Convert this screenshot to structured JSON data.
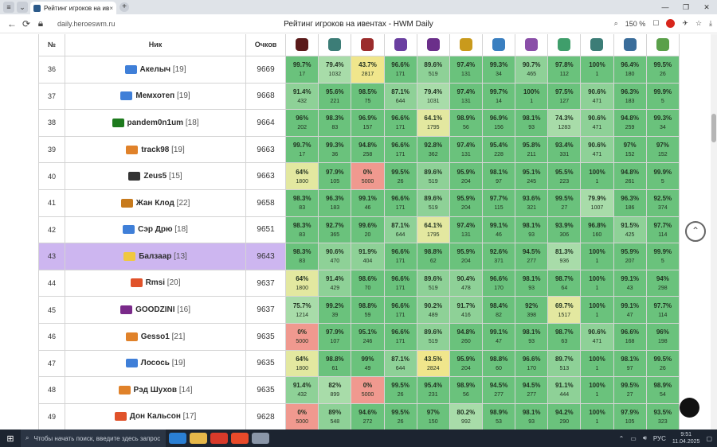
{
  "browser": {
    "tab_title": "Рейтинг игроков на ив",
    "url": "daily.heroeswm.ru",
    "page_title": "Рейтинг игроков на ивентах - HWM Daily",
    "zoom": "150 %",
    "new_tab": "+",
    "close_tab": "×"
  },
  "table": {
    "headers": {
      "num": "№",
      "nick": "Ник",
      "score": "Очков"
    },
    "icon_colors": [
      "#5a1a1a",
      "#3c7d77",
      "#9b2c2c",
      "#6a3fa0",
      "#6b2f8a",
      "#c99a1c",
      "#3a7fc0",
      "#8a4fa8",
      "#3f9e6b",
      "#3c7d77",
      "#3a6d9a",
      "#5aa04a"
    ],
    "icons": [
      "knight-helm-icon",
      "spiked-shield-icon",
      "demon-icon",
      "cloak-icon",
      "purple-hat-icon",
      "coin-icon",
      "axe-icon",
      "ring-icon",
      "sword-icon",
      "beast-icon",
      "bow-icon",
      "dragon-icon"
    ],
    "rows": [
      {
        "num": "36",
        "nick": "Акелыч",
        "lvl": "[19]",
        "flag": "#3f7fd8",
        "score": "9669",
        "cells": [
          [
            "99.7%",
            "17",
            "g3"
          ],
          [
            "79.4%",
            "1032",
            "g1"
          ],
          [
            "43.7%",
            "2817",
            "y2"
          ],
          [
            "96.6%",
            "171",
            "g3"
          ],
          [
            "89.6%",
            "519",
            "g2"
          ],
          [
            "97.4%",
            "131",
            "g3"
          ],
          [
            "99.3%",
            "34",
            "g3"
          ],
          [
            "90.7%",
            "465",
            "g2"
          ],
          [
            "97.8%",
            "112",
            "g3"
          ],
          [
            "100%",
            "1",
            "g3"
          ],
          [
            "96.4%",
            "180",
            "g3"
          ],
          [
            "99.5%",
            "26",
            "g3"
          ]
        ]
      },
      {
        "num": "37",
        "nick": "Мемхотеп",
        "lvl": "[19]",
        "flag": "#3f7fd8",
        "score": "9668",
        "cells": [
          [
            "91.4%",
            "432",
            "g2"
          ],
          [
            "95.6%",
            "221",
            "g3"
          ],
          [
            "98.5%",
            "75",
            "g3"
          ],
          [
            "87.1%",
            "644",
            "g2"
          ],
          [
            "79.4%",
            "1031",
            "g1"
          ],
          [
            "97.4%",
            "131",
            "g3"
          ],
          [
            "99.7%",
            "14",
            "g3"
          ],
          [
            "100%",
            "1",
            "g3"
          ],
          [
            "97.5%",
            "127",
            "g3"
          ],
          [
            "90.6%",
            "471",
            "g2"
          ],
          [
            "96.3%",
            "183",
            "g3"
          ],
          [
            "99.9%",
            "5",
            "g3"
          ]
        ]
      },
      {
        "num": "38",
        "nick": "pandem0n1um",
        "lvl": "[18]",
        "flag": "#1d7a1d",
        "score": "9664",
        "cells": [
          [
            "96%",
            "202",
            "g3"
          ],
          [
            "98.3%",
            "83",
            "g3"
          ],
          [
            "96.9%",
            "157",
            "g3"
          ],
          [
            "96.6%",
            "171",
            "g3"
          ],
          [
            "64.1%",
            "1795",
            "y1"
          ],
          [
            "98.9%",
            "56",
            "g3"
          ],
          [
            "96.9%",
            "156",
            "g3"
          ],
          [
            "98.1%",
            "93",
            "g3"
          ],
          [
            "74.3%",
            "1283",
            "g1"
          ],
          [
            "90.6%",
            "471",
            "g2"
          ],
          [
            "94.8%",
            "259",
            "g3"
          ],
          [
            "99.3%",
            "34",
            "g3"
          ]
        ]
      },
      {
        "num": "39",
        "nick": "track98",
        "lvl": "[19]",
        "flag": "#e0822a",
        "score": "9663",
        "cells": [
          [
            "99.7%",
            "17",
            "g3"
          ],
          [
            "99.3%",
            "36",
            "g3"
          ],
          [
            "94.8%",
            "258",
            "g3"
          ],
          [
            "96.6%",
            "171",
            "g3"
          ],
          [
            "92.8%",
            "362",
            "g3"
          ],
          [
            "97.4%",
            "131",
            "g3"
          ],
          [
            "95.4%",
            "228",
            "g3"
          ],
          [
            "95.8%",
            "211",
            "g3"
          ],
          [
            "93.4%",
            "331",
            "g3"
          ],
          [
            "90.6%",
            "471",
            "g2"
          ],
          [
            "97%",
            "152",
            "g3"
          ],
          [
            "97%",
            "152",
            "g3"
          ]
        ]
      },
      {
        "num": "40",
        "nick": "Zeus5",
        "lvl": "[15]",
        "flag": "#333333",
        "score": "9663",
        "cells": [
          [
            "64%",
            "1800",
            "y1"
          ],
          [
            "97.9%",
            "105",
            "g3"
          ],
          [
            "0%",
            "5000",
            "r1"
          ],
          [
            "99.5%",
            "26",
            "g3"
          ],
          [
            "89.6%",
            "519",
            "g2"
          ],
          [
            "95.9%",
            "204",
            "g3"
          ],
          [
            "98.1%",
            "97",
            "g3"
          ],
          [
            "95.1%",
            "245",
            "g3"
          ],
          [
            "95.5%",
            "223",
            "g3"
          ],
          [
            "100%",
            "1",
            "g3"
          ],
          [
            "94.8%",
            "261",
            "g3"
          ],
          [
            "99.9%",
            "5",
            "g3"
          ]
        ]
      },
      {
        "num": "41",
        "nick": "Жан Клод",
        "lvl": "[22]",
        "flag": "#c77a1c",
        "score": "9658",
        "cells": [
          [
            "98.3%",
            "83",
            "g3"
          ],
          [
            "96.3%",
            "183",
            "g3"
          ],
          [
            "99.1%",
            "46",
            "g3"
          ],
          [
            "96.6%",
            "171",
            "g3"
          ],
          [
            "89.6%",
            "519",
            "g2"
          ],
          [
            "95.9%",
            "204",
            "g3"
          ],
          [
            "97.7%",
            "115",
            "g3"
          ],
          [
            "93.6%",
            "321",
            "g3"
          ],
          [
            "99.5%",
            "27",
            "g3"
          ],
          [
            "79.9%",
            "1007",
            "g1"
          ],
          [
            "96.3%",
            "186",
            "g3"
          ],
          [
            "92.5%",
            "374",
            "g3"
          ]
        ]
      },
      {
        "num": "42",
        "nick": "Сэр Дрю",
        "lvl": "[18]",
        "flag": "#3f7fd8",
        "score": "9651",
        "cells": [
          [
            "98.3%",
            "83",
            "g3"
          ],
          [
            "92.7%",
            "365",
            "g3"
          ],
          [
            "99.6%",
            "20",
            "g3"
          ],
          [
            "87.1%",
            "644",
            "g2"
          ],
          [
            "64.1%",
            "1795",
            "y1"
          ],
          [
            "97.4%",
            "131",
            "g3"
          ],
          [
            "99.1%",
            "46",
            "g3"
          ],
          [
            "98.1%",
            "93",
            "g3"
          ],
          [
            "93.9%",
            "306",
            "g3"
          ],
          [
            "96.8%",
            "160",
            "g3"
          ],
          [
            "91.5%",
            "425",
            "g2"
          ],
          [
            "97.7%",
            "114",
            "g3"
          ]
        ]
      },
      {
        "num": "43",
        "nick": "Балзаар",
        "lvl": "[13]",
        "flag": "#f0c840",
        "score": "9643",
        "hl": true,
        "cells": [
          [
            "98.3%",
            "83",
            "g3"
          ],
          [
            "90.6%",
            "470",
            "g2"
          ],
          [
            "91.9%",
            "404",
            "g2"
          ],
          [
            "96.6%",
            "171",
            "g3"
          ],
          [
            "98.8%",
            "62",
            "g3"
          ],
          [
            "95.9%",
            "204",
            "g3"
          ],
          [
            "92.6%",
            "371",
            "g3"
          ],
          [
            "94.5%",
            "277",
            "g3"
          ],
          [
            "81.3%",
            "936",
            "g1"
          ],
          [
            "100%",
            "1",
            "g3"
          ],
          [
            "95.9%",
            "207",
            "g3"
          ],
          [
            "99.9%",
            "5",
            "g3"
          ]
        ]
      },
      {
        "num": "44",
        "nick": "Rmsi",
        "lvl": "[20]",
        "flag": "#e0522a",
        "score": "9637",
        "cells": [
          [
            "64%",
            "1800",
            "y1"
          ],
          [
            "91.4%",
            "429",
            "g2"
          ],
          [
            "98.6%",
            "70",
            "g3"
          ],
          [
            "96.6%",
            "171",
            "g3"
          ],
          [
            "89.6%",
            "519",
            "g2"
          ],
          [
            "90.4%",
            "478",
            "g2"
          ],
          [
            "96.6%",
            "170",
            "g3"
          ],
          [
            "98.1%",
            "93",
            "g3"
          ],
          [
            "98.7%",
            "64",
            "g3"
          ],
          [
            "100%",
            "1",
            "g3"
          ],
          [
            "99.1%",
            "43",
            "g3"
          ],
          [
            "94%",
            "298",
            "g3"
          ]
        ]
      },
      {
        "num": "45",
        "nick": "GOODZINI",
        "lvl": "[16]",
        "flag": "#7a2a8a",
        "score": "9637",
        "cells": [
          [
            "75.7%",
            "1214",
            "g1"
          ],
          [
            "99.2%",
            "39",
            "g3"
          ],
          [
            "98.8%",
            "59",
            "g3"
          ],
          [
            "96.6%",
            "171",
            "g3"
          ],
          [
            "90.2%",
            "489",
            "g2"
          ],
          [
            "91.7%",
            "416",
            "g2"
          ],
          [
            "98.4%",
            "82",
            "g3"
          ],
          [
            "92%",
            "398",
            "g3"
          ],
          [
            "69.7%",
            "1517",
            "y1"
          ],
          [
            "100%",
            "1",
            "g3"
          ],
          [
            "99.1%",
            "47",
            "g3"
          ],
          [
            "97.7%",
            "114",
            "g3"
          ]
        ]
      },
      {
        "num": "46",
        "nick": "Gesso1",
        "lvl": "[21]",
        "flag": "#e0822a",
        "score": "9635",
        "cells": [
          [
            "0%",
            "5000",
            "r1"
          ],
          [
            "97.9%",
            "107",
            "g3"
          ],
          [
            "95.1%",
            "246",
            "g3"
          ],
          [
            "96.6%",
            "171",
            "g3"
          ],
          [
            "89.6%",
            "519",
            "g2"
          ],
          [
            "94.8%",
            "260",
            "g3"
          ],
          [
            "99.1%",
            "47",
            "g3"
          ],
          [
            "98.1%",
            "93",
            "g3"
          ],
          [
            "98.7%",
            "63",
            "g3"
          ],
          [
            "90.6%",
            "471",
            "g2"
          ],
          [
            "96.6%",
            "168",
            "g3"
          ],
          [
            "96%",
            "198",
            "g3"
          ]
        ]
      },
      {
        "num": "47",
        "nick": "Лосось",
        "lvl": "[19]",
        "flag": "#3f7fd8",
        "score": "9635",
        "cells": [
          [
            "64%",
            "1800",
            "y1"
          ],
          [
            "98.8%",
            "61",
            "g3"
          ],
          [
            "99%",
            "49",
            "g3"
          ],
          [
            "87.1%",
            "644",
            "g2"
          ],
          [
            "43.5%",
            "2824",
            "y2"
          ],
          [
            "95.9%",
            "204",
            "g3"
          ],
          [
            "98.8%",
            "60",
            "g3"
          ],
          [
            "96.6%",
            "170",
            "g3"
          ],
          [
            "89.7%",
            "513",
            "g2"
          ],
          [
            "100%",
            "1",
            "g3"
          ],
          [
            "98.1%",
            "97",
            "g3"
          ],
          [
            "99.5%",
            "26",
            "g3"
          ]
        ]
      },
      {
        "num": "48",
        "nick": "Рэд Шухов",
        "lvl": "[14]",
        "flag": "#e0822a",
        "score": "9635",
        "cells": [
          [
            "91.4%",
            "432",
            "g2"
          ],
          [
            "82%",
            "899",
            "g1"
          ],
          [
            "0%",
            "5000",
            "r1"
          ],
          [
            "99.5%",
            "26",
            "g3"
          ],
          [
            "95.4%",
            "231",
            "g3"
          ],
          [
            "98.9%",
            "56",
            "g3"
          ],
          [
            "94.5%",
            "277",
            "g3"
          ],
          [
            "94.5%",
            "277",
            "g3"
          ],
          [
            "91.1%",
            "444",
            "g2"
          ],
          [
            "100%",
            "1",
            "g3"
          ],
          [
            "99.5%",
            "27",
            "g3"
          ],
          [
            "98.9%",
            "54",
            "g3"
          ]
        ]
      },
      {
        "num": "49",
        "nick": "Дон Кальсон",
        "lvl": "[17]",
        "flag": "#e0522a",
        "score": "9628",
        "cells": [
          [
            "0%",
            "5000",
            "r1"
          ],
          [
            "89%",
            "548",
            "g2"
          ],
          [
            "94.6%",
            "272",
            "g3"
          ],
          [
            "99.5%",
            "26",
            "g3"
          ],
          [
            "97%",
            "150",
            "g3"
          ],
          [
            "80.2%",
            "992",
            "g1"
          ],
          [
            "98.9%",
            "53",
            "g3"
          ],
          [
            "98.1%",
            "93",
            "g3"
          ],
          [
            "94.2%",
            "290",
            "g3"
          ],
          [
            "100%",
            "1",
            "g3"
          ],
          [
            "97.9%",
            "105",
            "g3"
          ],
          [
            "93.5%",
            "323",
            "g3"
          ]
        ]
      }
    ]
  },
  "taskbar": {
    "search_placeholder": "Чтобы начать поиск, введите здесь запрос",
    "lang": "РУС",
    "time": "9:51",
    "date": "11.04.2025"
  }
}
